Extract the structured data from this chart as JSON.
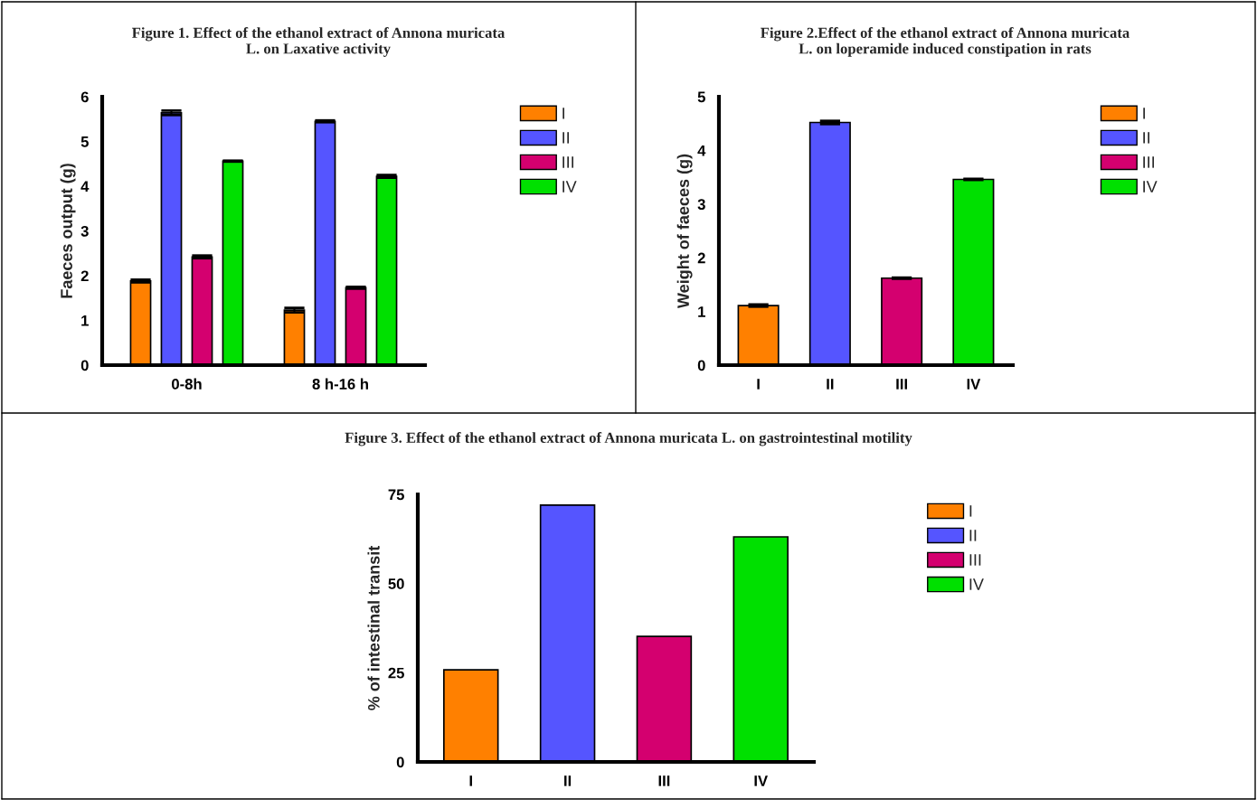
{
  "chart_data": [
    {
      "type": "bar",
      "title": "Figure 1. Effect of the ethanol extract of Annona muricata\nL. on Laxative activity",
      "ylabel": "Faeces output (g)",
      "categories": [
        "0-8h",
        "8 h-16 h"
      ],
      "ylim": [
        0,
        6
      ],
      "yticks": [
        0,
        1,
        2,
        3,
        4,
        5,
        6
      ],
      "legend": "right",
      "grid": false,
      "series": [
        {
          "name": "I",
          "color": "#ff8000",
          "values": [
            1.88,
            1.23
          ],
          "errors": [
            0.03,
            0.05
          ]
        },
        {
          "name": "II",
          "color": "#5555ff",
          "values": [
            5.64,
            5.45
          ],
          "errors": [
            0.05,
            0.02
          ]
        },
        {
          "name": "III",
          "color": "#d4006f",
          "values": [
            2.42,
            1.73
          ],
          "errors": [
            0.03,
            0.02
          ]
        },
        {
          "name": "IV",
          "color": "#00e000",
          "values": [
            4.56,
            4.22
          ],
          "errors": [
            0.01,
            0.03
          ]
        }
      ]
    },
    {
      "type": "bar",
      "title": "Figure 2.Effect of the ethanol extract of Annona muricata\nL. on loperamide induced constipation in rats",
      "ylabel": "Weight of faeces (g)",
      "categories": [
        "I",
        "II",
        "III",
        "IV"
      ],
      "ylim": [
        0,
        5
      ],
      "yticks": [
        0,
        1,
        2,
        3,
        4,
        5
      ],
      "legend": "right",
      "grid": false,
      "series": [
        {
          "name": "I",
          "color": "#ff8000",
          "values": [
            1.11,
            null,
            null,
            null
          ],
          "errors": [
            0.02,
            null,
            null,
            null
          ]
        },
        {
          "name": "II",
          "color": "#5555ff",
          "values": [
            null,
            4.52,
            null,
            null
          ],
          "errors": [
            null,
            0.03,
            null,
            null
          ]
        },
        {
          "name": "III",
          "color": "#d4006f",
          "values": [
            null,
            null,
            1.62,
            null
          ],
          "errors": [
            null,
            null,
            0.01,
            null
          ]
        },
        {
          "name": "IV",
          "color": "#00e000",
          "values": [
            null,
            null,
            null,
            3.46
          ],
          "errors": [
            null,
            null,
            null,
            0.01
          ]
        }
      ]
    },
    {
      "type": "bar",
      "title": "Figure 3. Effect of the ethanol extract of Annona muricata L. on gastrointestinal motility",
      "ylabel": "% of intestinal transit",
      "categories": [
        "I",
        "II",
        "III",
        "IV"
      ],
      "ylim": [
        0,
        75
      ],
      "yticks": [
        0,
        25,
        50,
        75
      ],
      "legend": "right",
      "grid": false,
      "series": [
        {
          "name": "I",
          "color": "#ff8000",
          "values": [
            25.8,
            null,
            null,
            null
          ]
        },
        {
          "name": "II",
          "color": "#5555ff",
          "values": [
            null,
            72.0,
            null,
            null
          ]
        },
        {
          "name": "III",
          "color": "#d4006f",
          "values": [
            null,
            null,
            35.2,
            null
          ]
        },
        {
          "name": "IV",
          "color": "#00e000",
          "values": [
            null,
            null,
            null,
            63.1
          ]
        }
      ]
    }
  ]
}
